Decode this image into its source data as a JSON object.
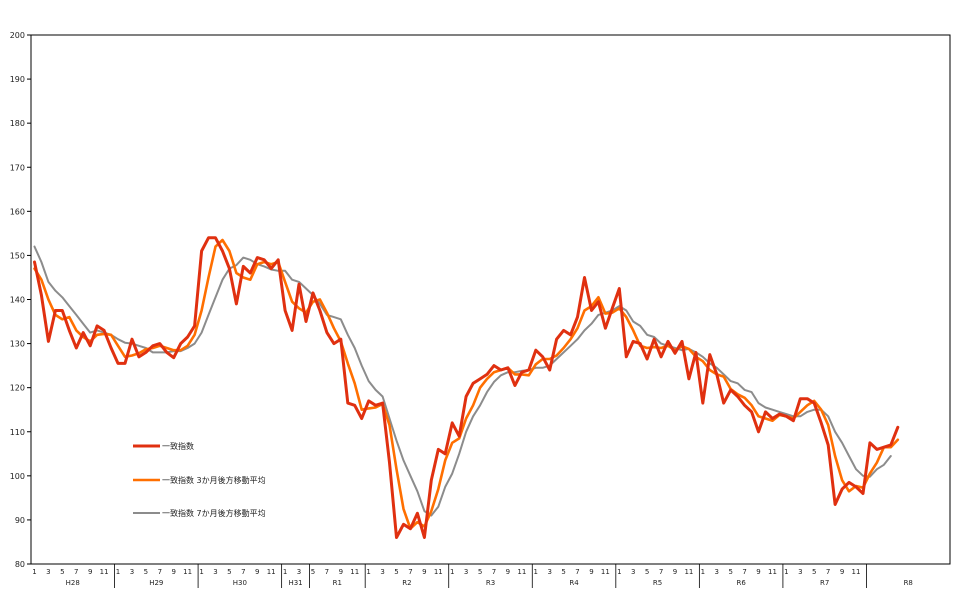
{
  "chart_data": {
    "type": "line",
    "title": "",
    "xlabel": "",
    "ylabel": "",
    "ylim": [
      80,
      200
    ],
    "yticks": [
      80,
      90,
      100,
      110,
      120,
      130,
      140,
      150,
      160,
      170,
      180,
      190,
      200
    ],
    "grid": false,
    "legend_position": "lower-left",
    "x_month_labels": [
      "1",
      "3",
      "5",
      "7",
      "9",
      "11",
      "1",
      "3",
      "5",
      "7",
      "9",
      "11",
      "1",
      "3",
      "5",
      "7",
      "9",
      "11",
      "1",
      "3",
      "5",
      "7",
      "9",
      "11",
      "1",
      "3",
      "5",
      "7",
      "9",
      "11",
      "1",
      "3",
      "5",
      "7",
      "9",
      "11",
      "1",
      "3",
      "5",
      "7",
      "9",
      "11",
      "1",
      "3",
      "5",
      "7",
      "9",
      "11",
      "1",
      "3",
      "5",
      "7",
      "9",
      "11",
      "1",
      "3",
      "5",
      "7",
      "9",
      "11"
    ],
    "eras": [
      {
        "label": "H28",
        "start": 0,
        "end": 11
      },
      {
        "label": "H29",
        "start": 12,
        "end": 23
      },
      {
        "label": "H30",
        "start": 24,
        "end": 35
      },
      {
        "label": "H31",
        "start": 36,
        "end": 39
      },
      {
        "label": "R1",
        "start": 40,
        "end": 47
      },
      {
        "label": "R2",
        "start": 48,
        "end": 59
      },
      {
        "label": "R3",
        "start": 60,
        "end": 71
      },
      {
        "label": "R4",
        "start": 72,
        "end": 83
      },
      {
        "label": "R5",
        "start": 84,
        "end": 95
      },
      {
        "label": "R6",
        "start": 96,
        "end": 107
      },
      {
        "label": "R7",
        "start": 108,
        "end": 119
      },
      {
        "label": "R8",
        "start": 120,
        "end": 131
      }
    ],
    "series": [
      {
        "name": "一致指数",
        "color": "#E03010",
        "values": [
          148.5,
          141,
          130.5,
          137.5,
          137.5,
          133,
          129,
          132.5,
          129.5,
          134,
          133,
          129,
          125.5,
          125.5,
          131,
          127,
          128,
          129.5,
          130,
          128,
          126.8,
          130,
          131.5,
          134,
          151,
          154,
          154,
          151,
          147,
          139,
          147.5,
          146,
          149.5,
          149,
          147,
          149,
          137.5,
          133,
          143.5,
          135,
          141.5,
          137.5,
          132.5,
          130,
          131,
          116.5,
          116,
          113,
          117,
          116,
          116.5,
          103,
          86,
          89,
          88,
          91.5,
          86,
          99,
          106,
          105,
          112,
          109,
          118,
          121,
          122,
          123,
          125,
          124,
          124.5,
          120.5,
          123.5,
          124,
          128.5,
          127,
          124,
          131,
          133,
          132,
          136,
          145,
          137.5,
          139.5,
          133.5,
          138,
          142.5,
          127,
          130.5,
          130,
          126.5,
          131,
          127,
          130.5,
          127.8,
          130.5,
          122,
          128,
          116.5,
          127.5,
          123,
          116.5,
          119.5,
          118,
          116,
          114.5,
          110,
          114.5,
          113,
          114,
          113.5,
          112.5,
          117.5,
          117.5,
          116.5,
          112,
          107,
          93.5,
          97,
          98.5,
          97.5,
          96,
          107.5,
          106,
          106.5,
          107,
          111
        ]
      },
      {
        "name": "一致指数 3か月後方移動平均",
        "color": "#FF6F00",
        "values": [
          147,
          144.5,
          140,
          136.5,
          135.5,
          136,
          133,
          131.5,
          130.5,
          132,
          132.2,
          132,
          129.5,
          127,
          127.3,
          127.8,
          128.7,
          129,
          129.5,
          129,
          128.5,
          128.5,
          129.5,
          132,
          137.5,
          145,
          152,
          153.5,
          151,
          146,
          145,
          144.5,
          148,
          148.5,
          148,
          148.5,
          144,
          139.5,
          138,
          137,
          139.5,
          140,
          137,
          133.5,
          130.5,
          125.5,
          121,
          115,
          115.3,
          115.5,
          116.3,
          111.5,
          101.5,
          92.5,
          88,
          89.5,
          88.5,
          92,
          97,
          103.5,
          107.5,
          108.5,
          113,
          116,
          120,
          122,
          123.5,
          124,
          124.5,
          123,
          123,
          122.8,
          125.3,
          126.5,
          126.5,
          127.3,
          129,
          131,
          133.5,
          137.5,
          138.5,
          140.5,
          136.8,
          137,
          138,
          136,
          133,
          129.5,
          129,
          129.2,
          129,
          129.5,
          128.5,
          129.4,
          128.8,
          127,
          126,
          124,
          123,
          122.5,
          119.7,
          118.5,
          117.7,
          116,
          113.5,
          113,
          112.5,
          113.8,
          113.5,
          113,
          114.5,
          116,
          117,
          115,
          111.5,
          104.5,
          99,
          96.5,
          97.7,
          97.3,
          100.5,
          103,
          106.5,
          106.5,
          108.2
        ]
      },
      {
        "name": "一致指数 7か月後方移動平均",
        "color": "#8C8C8C",
        "values": [
          152,
          148.5,
          144,
          142,
          140.5,
          138.5,
          136.5,
          134.5,
          132.5,
          133,
          132.5,
          132,
          131,
          130.2,
          130,
          129.5,
          129,
          128,
          128,
          128,
          128.3,
          128.3,
          129,
          130,
          132.5,
          136.5,
          140.5,
          144.5,
          147,
          147.8,
          149.5,
          149,
          148,
          147.5,
          146.8,
          146.5,
          146.5,
          144.5,
          144,
          142.5,
          141,
          139,
          136.5,
          136,
          135.5,
          132,
          129,
          125,
          121.5,
          119.5,
          118,
          113,
          108,
          103.5,
          100,
          96.5,
          92,
          91,
          93,
          97.5,
          100.5,
          105,
          110,
          113.5,
          116,
          119,
          121.3,
          122.8,
          123.5,
          123.5,
          123.8,
          124,
          124.5,
          124.5,
          125,
          126.5,
          128,
          129.5,
          131,
          133,
          134.5,
          136.5,
          137,
          137.5,
          138.5,
          137.5,
          135,
          134,
          132,
          131.5,
          130,
          129.5,
          129,
          128.5,
          128.8,
          128,
          127,
          125.5,
          124.5,
          123,
          121.5,
          121,
          119.5,
          119,
          116.5,
          115.5,
          115,
          114.5,
          114,
          113.5,
          113.5,
          114.5,
          115,
          115,
          113.5,
          110,
          107.5,
          104.5,
          101.5,
          100,
          99.8,
          101.5,
          102.5,
          104.5
        ]
      }
    ]
  }
}
